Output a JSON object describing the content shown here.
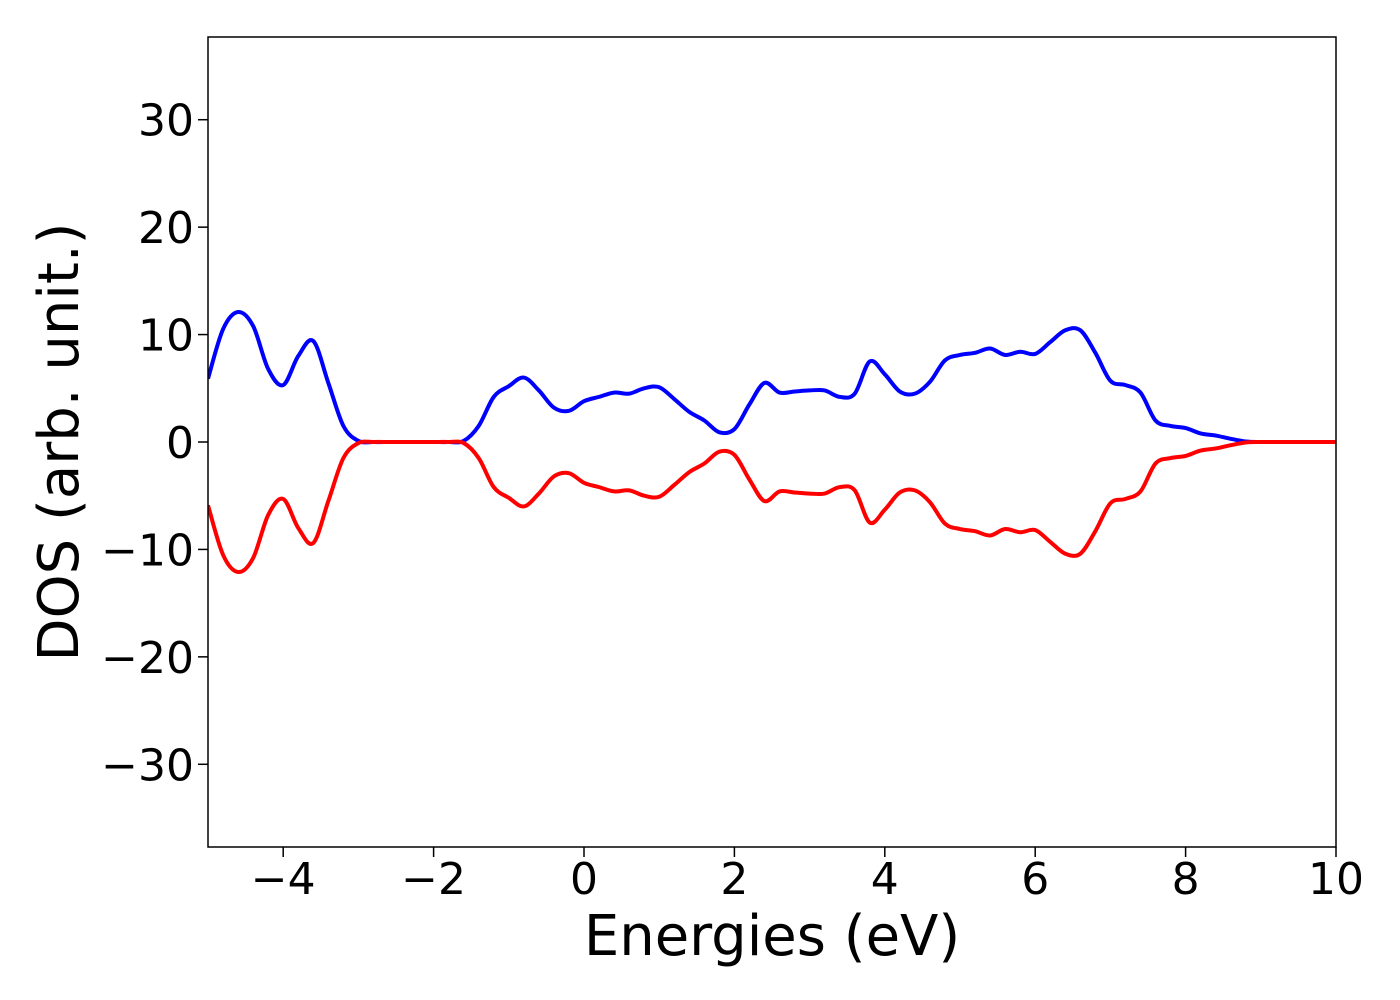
{
  "chart_data": {
    "type": "line",
    "xlabel": "Energies (eV)",
    "ylabel": "DOS (arb. unit.)",
    "x": [
      -5.0,
      -4.8,
      -4.6,
      -4.4,
      -4.2,
      -4.0,
      -3.8,
      -3.6,
      -3.4,
      -3.2,
      -3.0,
      -2.8,
      -2.6,
      -2.4,
      -2.2,
      -2.0,
      -1.8,
      -1.6,
      -1.4,
      -1.2,
      -1.0,
      -0.8,
      -0.6,
      -0.4,
      -0.2,
      0.0,
      0.2,
      0.4,
      0.6,
      0.8,
      1.0,
      1.2,
      1.4,
      1.6,
      1.8,
      2.0,
      2.2,
      2.4,
      2.6,
      2.8,
      3.0,
      3.2,
      3.4,
      3.6,
      3.8,
      4.0,
      4.2,
      4.4,
      4.6,
      4.8,
      5.0,
      5.2,
      5.4,
      5.6,
      5.8,
      6.0,
      6.2,
      6.4,
      6.6,
      6.8,
      7.0,
      7.2,
      7.4,
      7.6,
      7.8,
      8.0,
      8.2,
      8.4,
      8.6,
      8.8,
      9.0,
      9.2,
      9.4,
      9.6,
      9.8,
      10.0
    ],
    "series": [
      {
        "color": "#0000ff",
        "values": [
          5.9,
          10.5,
          12.1,
          10.8,
          6.8,
          5.3,
          8.0,
          9.4,
          5.5,
          1.5,
          0.1,
          0,
          0,
          0,
          0,
          0,
          0,
          0.1,
          1.5,
          4.2,
          5.2,
          6.0,
          4.8,
          3.2,
          2.9,
          3.8,
          4.2,
          4.6,
          4.5,
          5.0,
          5.1,
          4.0,
          2.8,
          2.0,
          0.9,
          1.2,
          3.5,
          5.5,
          4.6,
          4.7,
          4.8,
          4.8,
          4.2,
          4.5,
          7.5,
          6.3,
          4.7,
          4.5,
          5.6,
          7.6,
          8.1,
          8.3,
          8.7,
          8.1,
          8.4,
          8.2,
          9.3,
          10.4,
          10.4,
          8.3,
          5.7,
          5.3,
          4.6,
          2.0,
          1.5,
          1.3,
          0.8,
          0.6,
          0.3,
          0.05,
          0,
          0,
          0,
          0,
          0,
          0
        ]
      },
      {
        "color": "#ff0000",
        "values": [
          -5.9,
          -10.5,
          -12.1,
          -10.8,
          -6.8,
          -5.3,
          -8.0,
          -9.4,
          -5.5,
          -1.5,
          -0.1,
          0,
          0,
          0,
          0,
          0,
          0,
          -0.1,
          -1.5,
          -4.2,
          -5.2,
          -6.0,
          -4.8,
          -3.2,
          -2.9,
          -3.8,
          -4.2,
          -4.6,
          -4.5,
          -5.0,
          -5.1,
          -4.0,
          -2.8,
          -2.0,
          -0.9,
          -1.2,
          -3.5,
          -5.5,
          -4.6,
          -4.7,
          -4.8,
          -4.8,
          -4.2,
          -4.5,
          -7.5,
          -6.3,
          -4.7,
          -4.5,
          -5.6,
          -7.6,
          -8.1,
          -8.3,
          -8.7,
          -8.1,
          -8.4,
          -8.2,
          -9.3,
          -10.4,
          -10.4,
          -8.3,
          -5.7,
          -5.3,
          -4.6,
          -2.0,
          -1.5,
          -1.3,
          -0.8,
          -0.6,
          -0.3,
          -0.05,
          0,
          0,
          0,
          0,
          0,
          0
        ]
      }
    ],
    "xlim": [
      -5,
      10
    ],
    "xticks": [
      {
        "value": -4,
        "label": "−4"
      },
      {
        "value": -2,
        "label": "−2"
      },
      0,
      2,
      4,
      6,
      8,
      10
    ],
    "ylim": [
      -37.7,
      37.7
    ],
    "yticks": [
      {
        "value": -30,
        "label": "−30"
      },
      {
        "value": -20,
        "label": "−20"
      },
      {
        "value": -10,
        "label": "−10"
      },
      0,
      10,
      20,
      30
    ],
    "grid": false
  }
}
